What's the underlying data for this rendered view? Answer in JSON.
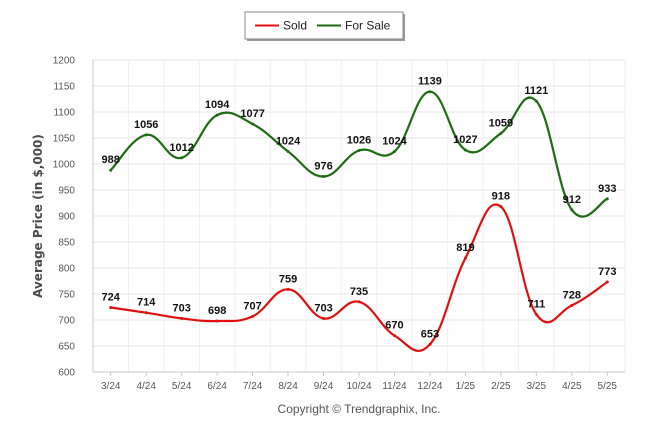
{
  "chart_data": {
    "type": "line",
    "ylabel": "Average Price (in $,000)",
    "xlabel": "",
    "ylim": [
      600,
      1200
    ],
    "yticks": [
      600,
      650,
      700,
      750,
      800,
      850,
      900,
      950,
      1000,
      1050,
      1100,
      1150,
      1200
    ],
    "grid": true,
    "legend_position": "top-center",
    "categories": [
      "3/24",
      "4/24",
      "5/24",
      "6/24",
      "7/24",
      "8/24",
      "9/24",
      "10/24",
      "11/24",
      "12/24",
      "1/25",
      "2/25",
      "3/25",
      "4/25",
      "5/25"
    ],
    "series": [
      {
        "name": "Sold",
        "color": "#e01010",
        "values": [
          724,
          714,
          703,
          698,
          707,
          759,
          703,
          735,
          670,
          653,
          819,
          918,
          711,
          728,
          773
        ]
      },
      {
        "name": "For Sale",
        "color": "#1e6b14",
        "values": [
          988,
          1056,
          1012,
          1094,
          1077,
          1024,
          976,
          1026,
          1024,
          1139,
          1027,
          1059,
          1121,
          912,
          933
        ]
      }
    ],
    "credit": "Copyright © Trendgraphix, Inc."
  }
}
